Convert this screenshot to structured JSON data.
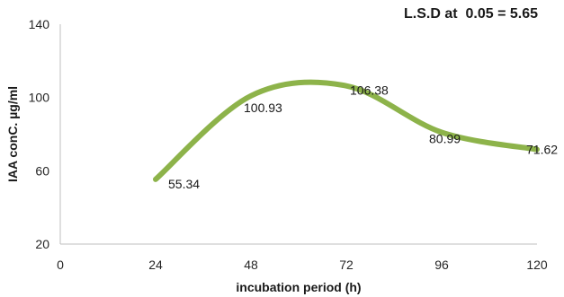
{
  "chart_data": {
    "type": "line",
    "title": "",
    "annotation": "L.S.D at  0.05 = 5.65",
    "xlabel": "incubation period (h)",
    "ylabel": "IAA conC. µg/ml",
    "xlim": [
      0,
      120
    ],
    "ylim": [
      20,
      140
    ],
    "x_ticks": [
      0,
      24,
      48,
      72,
      96,
      120
    ],
    "y_ticks": [
      20,
      60,
      100,
      140
    ],
    "grid": false,
    "legend": "none",
    "smooth": true,
    "line_color": "#8db34a",
    "series": [
      {
        "x": [
          24,
          48,
          72,
          96,
          120
        ],
        "values": [
          55.34,
          100.93,
          106.38,
          80.99,
          71.62
        ],
        "data_labels": [
          "55.34",
          "100.93",
          "106.38",
          "80.99",
          "71.62"
        ]
      }
    ]
  }
}
